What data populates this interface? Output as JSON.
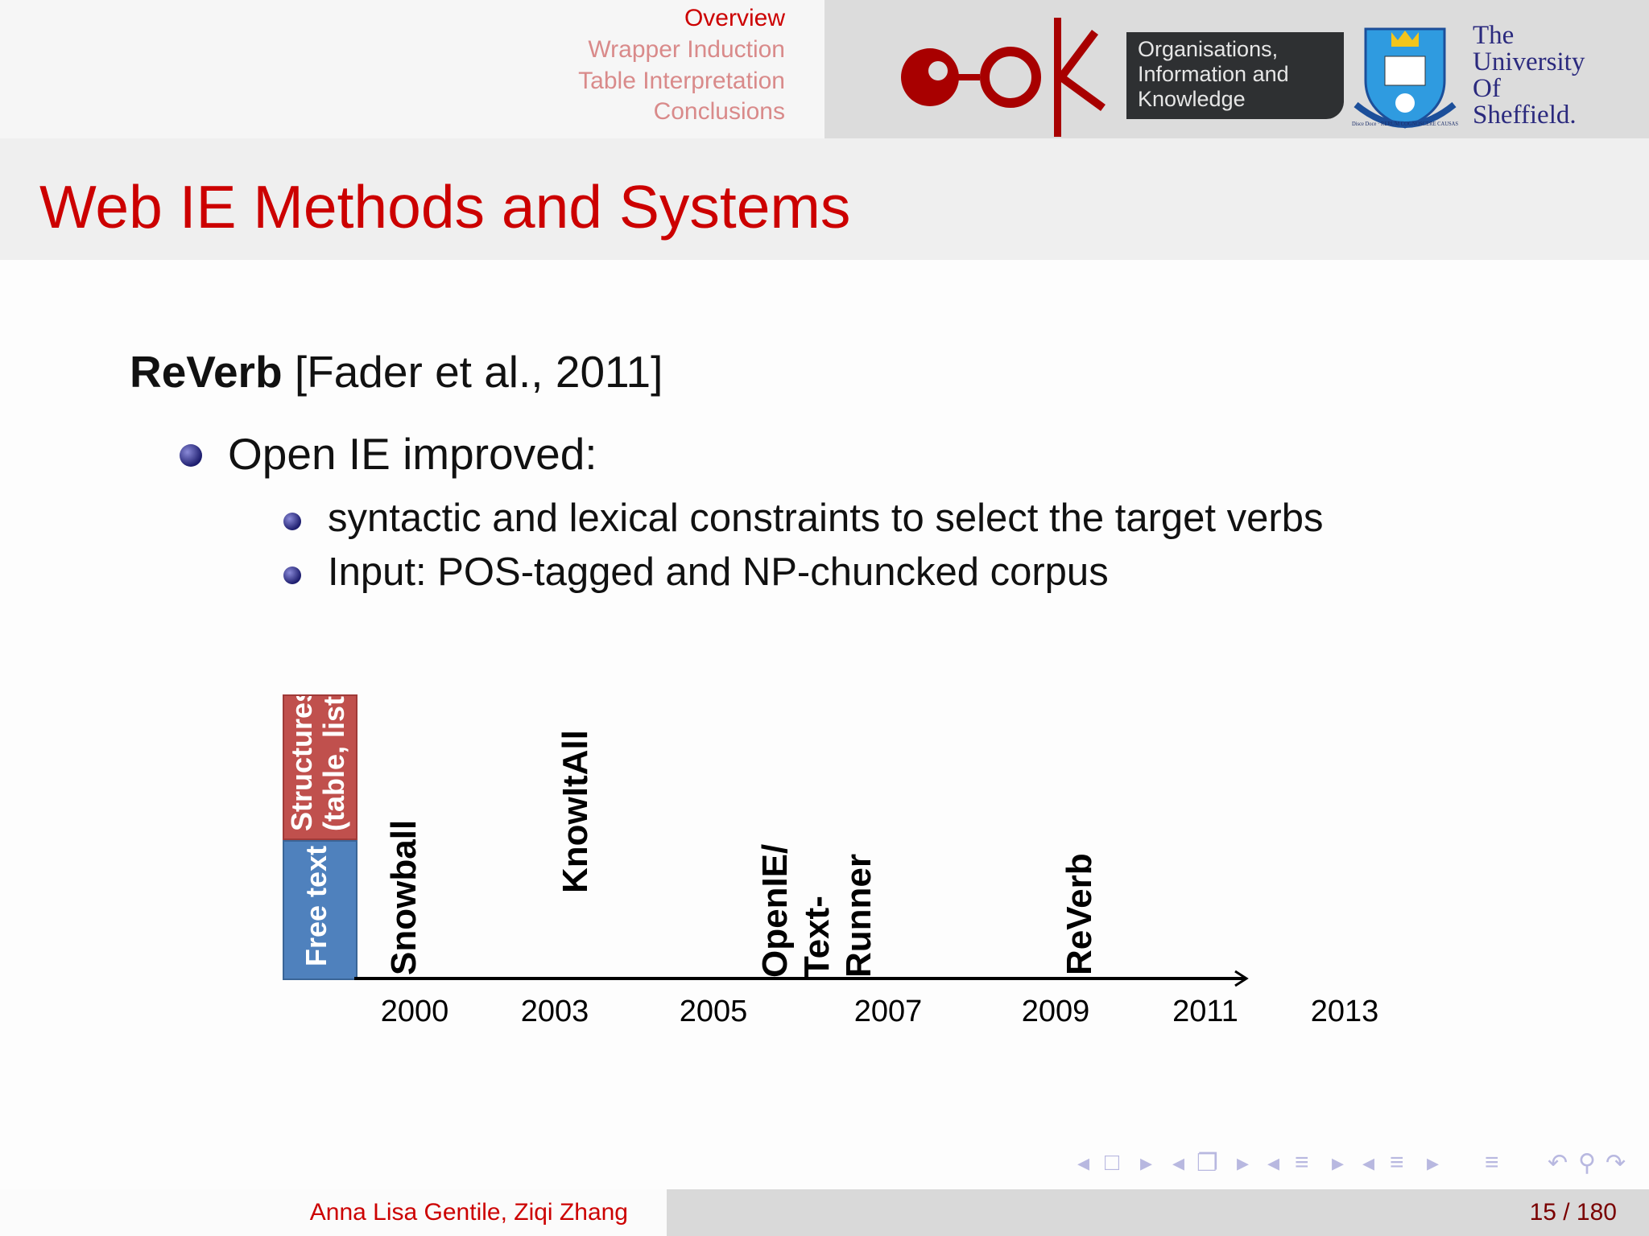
{
  "header": {
    "sections": [
      "Overview",
      "Wrapper Induction",
      "Table Interpretation",
      "Conclusions"
    ],
    "current_section": "Overview",
    "oak_logo_text": "oak",
    "oak_box_lines": [
      "Organisations,",
      "Information and",
      "Knowledge"
    ],
    "university_lines": [
      "The",
      "University",
      "Of",
      "Sheffield."
    ],
    "crest_motto": "Disce Doce · RERUM COGNOSCERE CAUSAS"
  },
  "slide": {
    "title": "Web IE Methods and Systems",
    "heading_bold": "ReVerb",
    "heading_rest": " [Fader et al., 2011]",
    "bullet": "Open IE improved:",
    "sub_bullets": [
      "syntactic and lexical constraints to select the target verbs",
      "Input: POS-tagged and NP-chuncked corpus"
    ]
  },
  "timeline": {
    "legend_top_lines": [
      "Structures",
      "(table, lists"
    ],
    "legend_bottom": "Free text",
    "colors": {
      "structures": "#c0504d",
      "free_text": "#4f81bd"
    },
    "systems": [
      "Snowball",
      "KnowItAll",
      "OpenIE/",
      "Text-",
      "Runner",
      "ReVerb"
    ],
    "years": [
      "2000",
      "2003",
      "2005",
      "2007",
      "2009",
      "2011",
      "2013"
    ]
  },
  "footer": {
    "authors": "Anna Lisa Gentile, Ziqi Zhang",
    "page": "15 / 180"
  },
  "nav_icons": [
    "prev-icon",
    "frame-icon",
    "next-icon",
    "prev-icon",
    "subsection-icon",
    "next-icon",
    "prev-icon",
    "section-icon",
    "next-icon",
    "prev-icon",
    "doc-icon",
    "next-icon",
    "toc-icon",
    "undo-icon",
    "search-icon",
    "redo-icon"
  ]
}
